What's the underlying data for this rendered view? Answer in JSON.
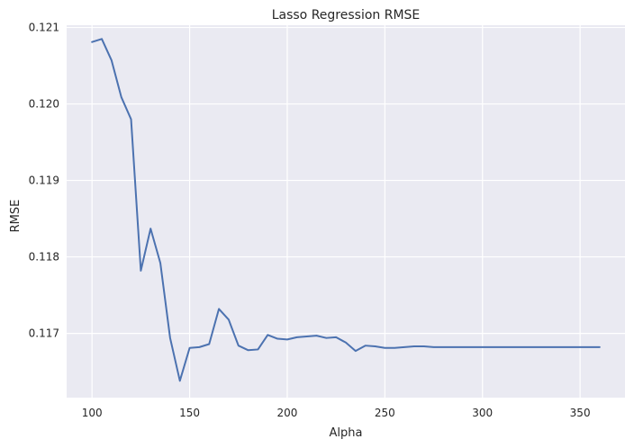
{
  "chart_data": {
    "type": "line",
    "title": "Lasso Regression RMSE",
    "xlabel": "Alpha",
    "ylabel": "RMSE",
    "xlim": [
      87,
      373
    ],
    "ylim": [
      0.11616,
      0.12103
    ],
    "xticks": [
      100,
      150,
      200,
      250,
      300,
      350
    ],
    "yticks": [
      0.117,
      0.118,
      0.119,
      0.12,
      0.121
    ],
    "ytick_labels": [
      "0.117",
      "0.118",
      "0.119",
      "0.120",
      "0.121"
    ],
    "grid": true,
    "colors": {
      "background": "#eaeaf2",
      "grid": "#ffffff",
      "line": "#4c72b0"
    },
    "series": [
      {
        "x": [
          100,
          105,
          110,
          115,
          120,
          125,
          130,
          135,
          140,
          145,
          150,
          155,
          160,
          165,
          170,
          175,
          180,
          185,
          190,
          195,
          200,
          205,
          210,
          215,
          220,
          225,
          230,
          235,
          240,
          245,
          250,
          255,
          260,
          265,
          270,
          275,
          280,
          285,
          290,
          295,
          300,
          305,
          310,
          315,
          320,
          325,
          330,
          335,
          340,
          345,
          350,
          355,
          360
        ],
        "values": [
          0.12081,
          0.12085,
          0.12057,
          0.12009,
          0.1198,
          0.11782,
          0.11837,
          0.11792,
          0.11694,
          0.11638,
          0.11681,
          0.11682,
          0.11686,
          0.11732,
          0.11718,
          0.11684,
          0.11678,
          0.11679,
          0.11698,
          0.11693,
          0.11692,
          0.11695,
          0.11696,
          0.11697,
          0.11694,
          0.11695,
          0.11688,
          0.11677,
          0.11684,
          0.11683,
          0.11681,
          0.11681,
          0.11682,
          0.11683,
          0.11683,
          0.11682,
          0.11682,
          0.11682,
          0.11682,
          0.11682,
          0.11682,
          0.11682,
          0.11682,
          0.11682,
          0.11682,
          0.11682,
          0.11682,
          0.11682,
          0.11682,
          0.11682,
          0.11682,
          0.11682,
          0.11682
        ]
      }
    ]
  }
}
